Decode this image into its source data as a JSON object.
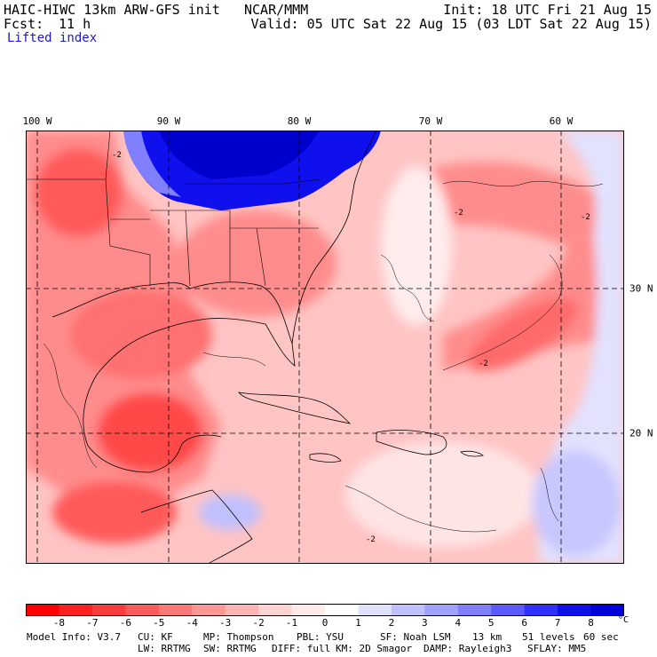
{
  "header": {
    "model_title": "HAIC-HIWC 13km ARW-GFS init",
    "org": "NCAR/MMM",
    "init": "Init: 18 UTC Fri 21 Aug 15",
    "fcst_label": "Fcst:",
    "fcst_value": "11 h",
    "valid": "Valid: 05 UTC Sat 22 Aug 15 (03 LDT Sat 22 Aug 15)",
    "field": "Lifted index"
  },
  "axes": {
    "lon_labels": [
      "100 W",
      "90 W",
      "80 W",
      "70 W",
      "60 W"
    ],
    "lat_labels": [
      "30 N",
      "20 N"
    ]
  },
  "colorbar": {
    "labels": [
      "-8",
      "-7",
      "-6",
      "-5",
      "-4",
      "-3",
      "-2",
      "-1",
      "0",
      "1",
      "2",
      "3",
      "4",
      "5",
      "6",
      "7",
      "8"
    ],
    "unit": "°C",
    "colors": [
      "#ff0000",
      "#ff2020",
      "#ff3c3c",
      "#ff5a5a",
      "#ff7878",
      "#ff9696",
      "#ffb4b4",
      "#ffd2d2",
      "#ffeaea",
      "#ffffff",
      "#e0e0ff",
      "#c0c0ff",
      "#a0a0ff",
      "#8080ff",
      "#5a5aff",
      "#3030ff",
      "#1010ee",
      "#0000dd"
    ]
  },
  "model_info": {
    "line1": [
      "Model Info: V3.7",
      "CU: KF",
      "MP: Thompson",
      "PBL: YSU",
      "SF: Noah LSM",
      "13 km",
      "51 levels",
      "60 sec"
    ],
    "line2": [
      "LW: RRTMG",
      "SW: RRTMG",
      "DIFF: full",
      "KM: 2D Smagor",
      "DAMP: Rayleigh3",
      "SFLAY: MM5"
    ]
  },
  "map": {
    "contour_labels": [
      "-2",
      "-2",
      "-2",
      "-2",
      "-2"
    ],
    "colors": {
      "strong_neg": "#ff4a4a",
      "mid_neg": "#ff8c8c",
      "weak_neg": "#ffc4c4",
      "neutral": "#ffecec",
      "weak_pos": "#dcdcff",
      "strong_pos": "#0000ee",
      "grid": "#000000"
    }
  }
}
